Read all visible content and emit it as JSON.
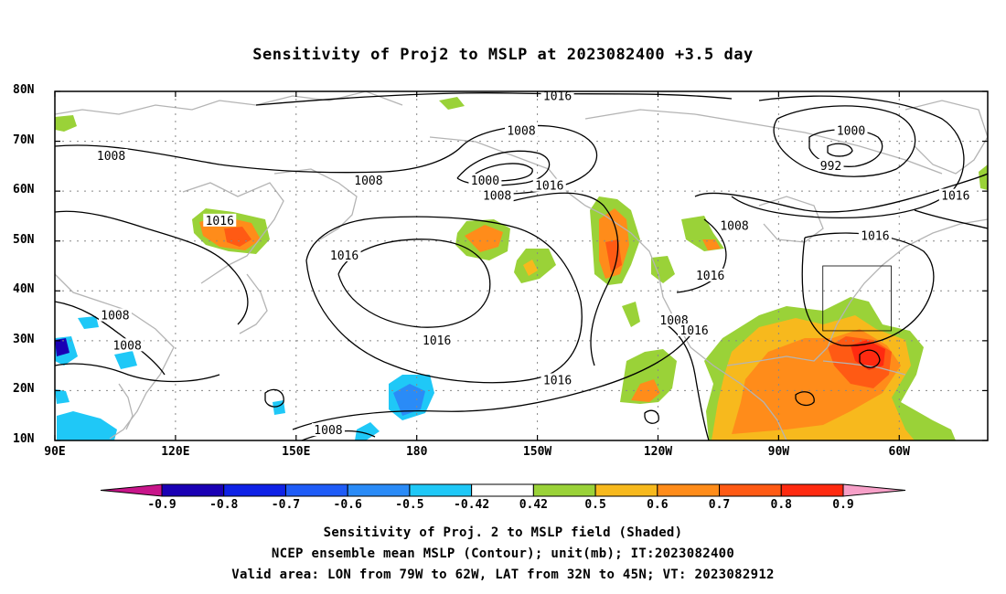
{
  "title": "Sensitivity of Proj2 to MSLP at 2023082400 +3.5 day",
  "axes": {
    "lat_labels": [
      "80N",
      "70N",
      "60N",
      "50N",
      "40N",
      "30N",
      "20N",
      "10N"
    ],
    "lat_values": [
      80,
      70,
      60,
      50,
      40,
      30,
      20,
      10
    ],
    "lon_labels": [
      "90E",
      "120E",
      "150E",
      "180",
      "150W",
      "120W",
      "90W",
      "60W"
    ],
    "lon_values": [
      90,
      120,
      150,
      180,
      210,
      240,
      270,
      300
    ],
    "lon_range": [
      90,
      322
    ],
    "lat_range": [
      10,
      80
    ],
    "grid": true
  },
  "contour_labels": [
    {
      "text": "1016",
      "lon": 215,
      "lat": 79
    },
    {
      "text": "1008",
      "lon": 206,
      "lat": 72
    },
    {
      "text": "1000",
      "lon": 288,
      "lat": 72
    },
    {
      "text": "992",
      "lon": 283,
      "lat": 65
    },
    {
      "text": "1008",
      "lon": 104,
      "lat": 67
    },
    {
      "text": "1008",
      "lon": 168,
      "lat": 62
    },
    {
      "text": "1000",
      "lon": 197,
      "lat": 62
    },
    {
      "text": "1008",
      "lon": 200,
      "lat": 59
    },
    {
      "text": "1016",
      "lon": 213,
      "lat": 61
    },
    {
      "text": "1016",
      "lon": 314,
      "lat": 59
    },
    {
      "text": "1016",
      "lon": 131,
      "lat": 54
    },
    {
      "text": "1008",
      "lon": 259,
      "lat": 53
    },
    {
      "text": "1016",
      "lon": 294,
      "lat": 51
    },
    {
      "text": "1016",
      "lon": 162,
      "lat": 47
    },
    {
      "text": "1016",
      "lon": 253,
      "lat": 43
    },
    {
      "text": "1008",
      "lon": 105,
      "lat": 35
    },
    {
      "text": "1008",
      "lon": 108,
      "lat": 29
    },
    {
      "text": "1008",
      "lon": 244,
      "lat": 34
    },
    {
      "text": "1016",
      "lon": 249,
      "lat": 32
    },
    {
      "text": "1016",
      "lon": 185,
      "lat": 30
    },
    {
      "text": "1016",
      "lon": 215,
      "lat": 22
    },
    {
      "text": "1008",
      "lon": 158,
      "lat": 12
    }
  ],
  "valid_area": {
    "lon_min": -79,
    "lon_max": -62,
    "lat_min": 32,
    "lat_max": 45
  },
  "colorbar": {
    "labels": [
      "-0.9",
      "-0.8",
      "-0.7",
      "-0.6",
      "-0.5",
      "-0.42",
      "0.42",
      "0.5",
      "0.6",
      "0.7",
      "0.8",
      "0.9"
    ],
    "colors": [
      "#1a00b4",
      "#0f22e6",
      "#1f5cf7",
      "#2a8bf7",
      "#1fc8f7",
      "#ffffff",
      "#9ad238",
      "#f7b91d",
      "#ff8c1a",
      "#ff5a14",
      "#ff2a10"
    ],
    "under_color": "#c8158a",
    "over_color": "#f7a0c8"
  },
  "captions": [
    "Sensitivity of Proj. 2 to MSLP field (Shaded)",
    "NCEP ensemble mean MSLP (Contour); unit(mb); IT:2023082400",
    "Valid area: LON from 79W to 62W, LAT from 32N to 45N; VT: 2023082912"
  ],
  "colors": {
    "contour": "#000000",
    "coastline": "#b4b4b4",
    "positive_low": "#9ad238",
    "positive_mid": "#ff8c1a",
    "positive_high": "#ff2a10",
    "negative_low": "#1fc8f7",
    "negative_mid": "#2a8bf7",
    "negative_high": "#1a00b4"
  }
}
